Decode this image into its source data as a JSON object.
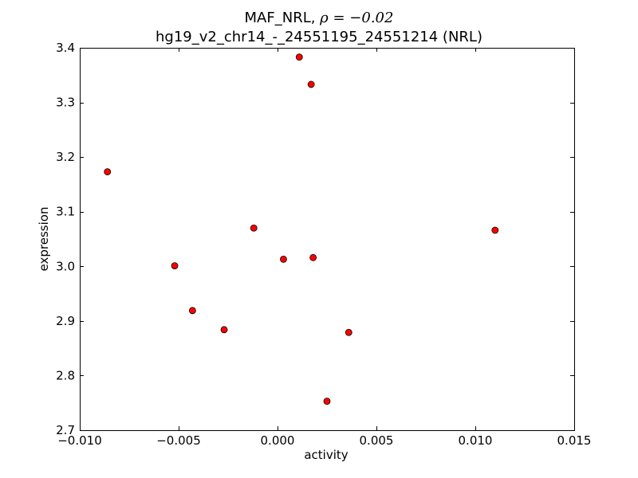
{
  "chart_data": {
    "type": "scatter",
    "title_line1": "MAF_NRL, ",
    "title_rho": "ρ = −0.02",
    "title_line2": "hg19_v2_chr14_-_24551195_24551214 (NRL)",
    "xlabel": "activity",
    "ylabel": "expression",
    "xlim": [
      -0.01,
      0.015
    ],
    "ylim": [
      2.7,
      3.4
    ],
    "x_ticks": [
      -0.01,
      -0.005,
      0.0,
      0.005,
      0.01,
      0.015
    ],
    "x_tick_labels": [
      "−0.010",
      "−0.005",
      "0.000",
      "0.005",
      "0.010",
      "0.015"
    ],
    "y_ticks": [
      2.7,
      2.8,
      2.9,
      3.0,
      3.1,
      3.2,
      3.3,
      3.4
    ],
    "y_tick_labels": [
      "2.7",
      "2.8",
      "2.9",
      "3.0",
      "3.1",
      "3.2",
      "3.3",
      "3.4"
    ],
    "grid": false,
    "marker_color": "#ff0000",
    "marker_edge_color": "#000000",
    "points": [
      {
        "x": -0.0086,
        "y": 3.173
      },
      {
        "x": 0.0011,
        "y": 3.383
      },
      {
        "x": 0.0017,
        "y": 3.333
      },
      {
        "x": -0.0012,
        "y": 3.07
      },
      {
        "x": 0.0003,
        "y": 3.013
      },
      {
        "x": 0.0018,
        "y": 3.016
      },
      {
        "x": -0.0052,
        "y": 3.001
      },
      {
        "x": -0.0043,
        "y": 2.919
      },
      {
        "x": -0.0027,
        "y": 2.884
      },
      {
        "x": 0.0036,
        "y": 2.879
      },
      {
        "x": 0.0025,
        "y": 2.753
      },
      {
        "x": 0.011,
        "y": 3.066
      }
    ]
  }
}
